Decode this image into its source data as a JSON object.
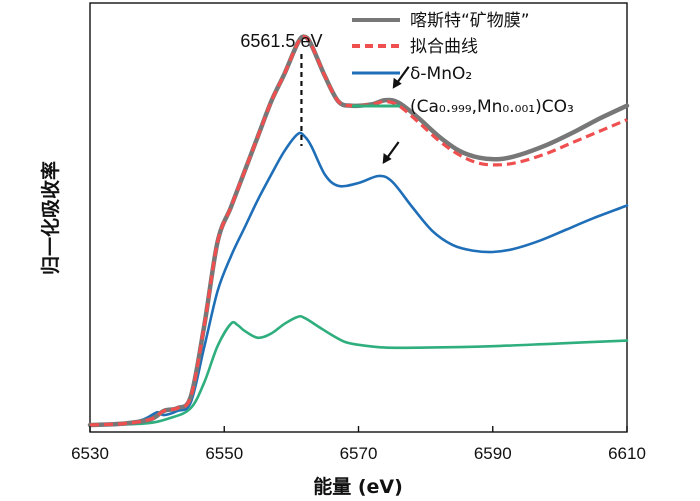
{
  "chart_data": {
    "type": "line",
    "xlabel": "能量 (eV)",
    "ylabel": "归一化吸收率",
    "xlim": [
      6530,
      6610
    ],
    "ylim": [
      -0.05,
      3.0
    ],
    "xticks": [
      6530,
      6550,
      6570,
      6590,
      6610
    ],
    "yticks_visible": false,
    "grid": false,
    "legend_position": "top-right",
    "annotation": {
      "text": "6561.5 eV",
      "x": 6561.5
    },
    "arrow_markers": [
      {
        "name": "arrow-rhodochrosite-film",
        "x": 6574.5
      },
      {
        "name": "arrow-delta-mno2",
        "x": 6573.0
      }
    ],
    "series": [
      {
        "name": "喀斯特“矿物膜”",
        "color": "#777777",
        "style": "solid",
        "x": [
          6530,
          6535,
          6539,
          6541,
          6543,
          6545,
          6547,
          6549,
          6551,
          6553,
          6555,
          6557,
          6559,
          6561,
          6562,
          6563,
          6565,
          6567,
          6569,
          6572,
          6574,
          6576,
          6579,
          6582,
          6585,
          6588,
          6591,
          6594,
          6598,
          6602,
          6606,
          6610
        ],
        "values": [
          0.0,
          0.01,
          0.04,
          0.1,
          0.12,
          0.2,
          0.7,
          1.3,
          1.55,
          1.8,
          2.05,
          2.3,
          2.5,
          2.72,
          2.76,
          2.7,
          2.48,
          2.3,
          2.27,
          2.28,
          2.31,
          2.29,
          2.18,
          2.05,
          1.95,
          1.9,
          1.89,
          1.92,
          1.99,
          2.08,
          2.18,
          2.27
        ]
      },
      {
        "name": "拟合曲线",
        "color": "#ef4f4f",
        "style": "dashed",
        "x": [
          6530,
          6535,
          6539,
          6541,
          6543,
          6545,
          6547,
          6549,
          6551,
          6553,
          6555,
          6557,
          6559,
          6561,
          6562,
          6563,
          6565,
          6567,
          6569,
          6572,
          6574,
          6576,
          6579,
          6582,
          6585,
          6588,
          6591,
          6594,
          6598,
          6602,
          6606,
          6610
        ],
        "values": [
          0.0,
          0.01,
          0.04,
          0.1,
          0.12,
          0.2,
          0.7,
          1.3,
          1.55,
          1.8,
          2.05,
          2.3,
          2.5,
          2.72,
          2.76,
          2.7,
          2.48,
          2.3,
          2.27,
          2.28,
          2.3,
          2.27,
          2.15,
          2.02,
          1.92,
          1.86,
          1.85,
          1.87,
          1.93,
          2.01,
          2.09,
          2.17
        ]
      },
      {
        "name": "δ-MnO₂",
        "color": "#1f6fb8",
        "style": "solid",
        "x": [
          6530,
          6535,
          6538,
          6540,
          6541,
          6543,
          6545,
          6547,
          6549,
          6551,
          6553,
          6555,
          6557,
          6559,
          6561,
          6562,
          6563,
          6565,
          6567,
          6570,
          6573,
          6575,
          6578,
          6581,
          6584,
          6587,
          6590,
          6593,
          6597,
          6601,
          6605,
          6610
        ],
        "values": [
          0.0,
          0.01,
          0.04,
          0.09,
          0.07,
          0.1,
          0.16,
          0.55,
          0.95,
          1.2,
          1.4,
          1.6,
          1.78,
          1.95,
          2.07,
          2.05,
          1.98,
          1.78,
          1.7,
          1.72,
          1.77,
          1.73,
          1.55,
          1.38,
          1.28,
          1.24,
          1.23,
          1.25,
          1.31,
          1.39,
          1.47,
          1.56
        ]
      },
      {
        "name": "(Ca₀.₉₉₉,Mn₀.₀₀₁)CO₃",
        "color": "#2fae7e",
        "style": "solid",
        "x": [
          6530,
          6538,
          6542,
          6545,
          6547,
          6549,
          6551,
          6552,
          6553,
          6555,
          6557,
          6559,
          6561,
          6562,
          6564,
          6566,
          6568,
          6570,
          6574,
          6580,
          6590,
          6600,
          6610
        ],
        "values": [
          0.0,
          0.01,
          0.05,
          0.12,
          0.3,
          0.56,
          0.72,
          0.71,
          0.67,
          0.62,
          0.65,
          0.72,
          0.77,
          0.76,
          0.7,
          0.64,
          0.59,
          0.57,
          0.55,
          0.55,
          0.56,
          0.58,
          0.6
        ]
      }
    ]
  }
}
